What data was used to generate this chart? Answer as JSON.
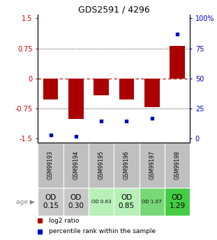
{
  "title": "GDS2591 / 4296",
  "samples": [
    "GSM99193",
    "GSM99194",
    "GSM99195",
    "GSM99196",
    "GSM99197",
    "GSM99198"
  ],
  "log2_ratios": [
    -0.52,
    -1.0,
    -0.42,
    -0.52,
    -0.72,
    0.82
  ],
  "percentile_ranks": [
    3,
    2,
    15,
    15,
    17,
    87
  ],
  "age_labels": [
    "OD\n0.15",
    "OD\n0.30",
    "OD 0.63",
    "OD\n0.85",
    "OD 1.07",
    "OD\n1.29"
  ],
  "age_fontsize_large": [
    true,
    true,
    false,
    true,
    false,
    true
  ],
  "cell_colors": [
    "#c8c8c8",
    "#c8c8c8",
    "#b8f0b8",
    "#b8f0b8",
    "#78d878",
    "#44cc44"
  ],
  "sample_cell_color": "#c0c0c0",
  "bar_color": "#aa0000",
  "dot_color": "#0000bb",
  "ylim": [
    -1.6,
    1.6
  ],
  "yticks_left": [
    -1.5,
    -0.75,
    0,
    0.75,
    1.5
  ],
  "yticks_right": [
    0,
    25,
    50,
    75,
    100
  ],
  "hline_dotted": [
    -0.75,
    0.75
  ],
  "hline_dashed_zero": 0,
  "left_tick_color": "#cc0000",
  "right_tick_color": "#0000cc",
  "background_color": "#ffffff",
  "legend_red_label": "log2 ratio",
  "legend_blue_label": "percentile rank within the sample"
}
